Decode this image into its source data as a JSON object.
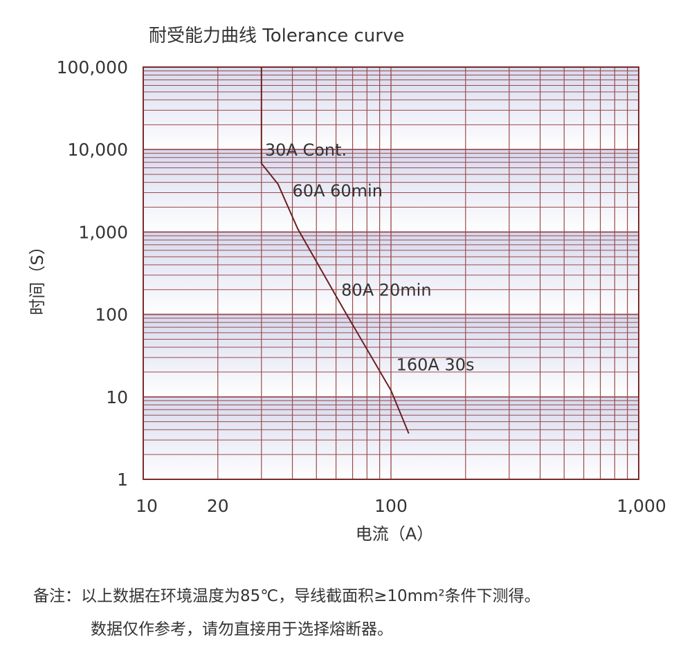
{
  "chart_data": {
    "type": "line",
    "title": "耐受能力曲线   Tolerance curve",
    "xlabel": "电流（A）",
    "ylabel": "时间（S）",
    "x_scale": "log",
    "y_scale": "log",
    "xlim": [
      10,
      1000
    ],
    "ylim": [
      1,
      100000
    ],
    "x_ticks": [
      {
        "value": 10,
        "label": "10"
      },
      {
        "value": 20,
        "label": "20"
      },
      {
        "value": 100,
        "label": "100"
      },
      {
        "value": 1000,
        "label": "1,000"
      }
    ],
    "y_ticks": [
      {
        "value": 100000,
        "label": "100,000"
      },
      {
        "value": 10000,
        "label": "10,000"
      },
      {
        "value": 1000,
        "label": "1,000"
      },
      {
        "value": 100,
        "label": "100"
      },
      {
        "value": 10,
        "label": "10"
      },
      {
        "value": 1,
        "label": "1"
      }
    ],
    "grid": true,
    "series": [
      {
        "color": "#6b1f1f",
        "points": [
          [
            30,
            100000
          ],
          [
            30,
            6800
          ],
          [
            35,
            3800
          ],
          [
            42,
            1100
          ],
          [
            65,
            110
          ],
          [
            100,
            12
          ],
          [
            118,
            3.6
          ]
        ]
      }
    ],
    "annotations": [
      {
        "text": "30A Cont.",
        "x": 31,
        "y": 10000
      },
      {
        "text": "60A 60min",
        "x": 40,
        "y": 3200
      },
      {
        "text": "80A 20min",
        "x": 63,
        "y": 200
      },
      {
        "text": "160A 30s",
        "x": 105,
        "y": 25
      }
    ]
  },
  "colors": {
    "grid": "#9a4a4a",
    "frame": "#7a2a2a",
    "band": "#dde0f0",
    "curve": "#6b1f1f"
  },
  "note": {
    "line1": "备注：以上数据在环境温度为85℃，导线截面积≥10mm²条件下测得。",
    "line2": "数据仅作参考，请勿直接用于选择熔断器。"
  }
}
